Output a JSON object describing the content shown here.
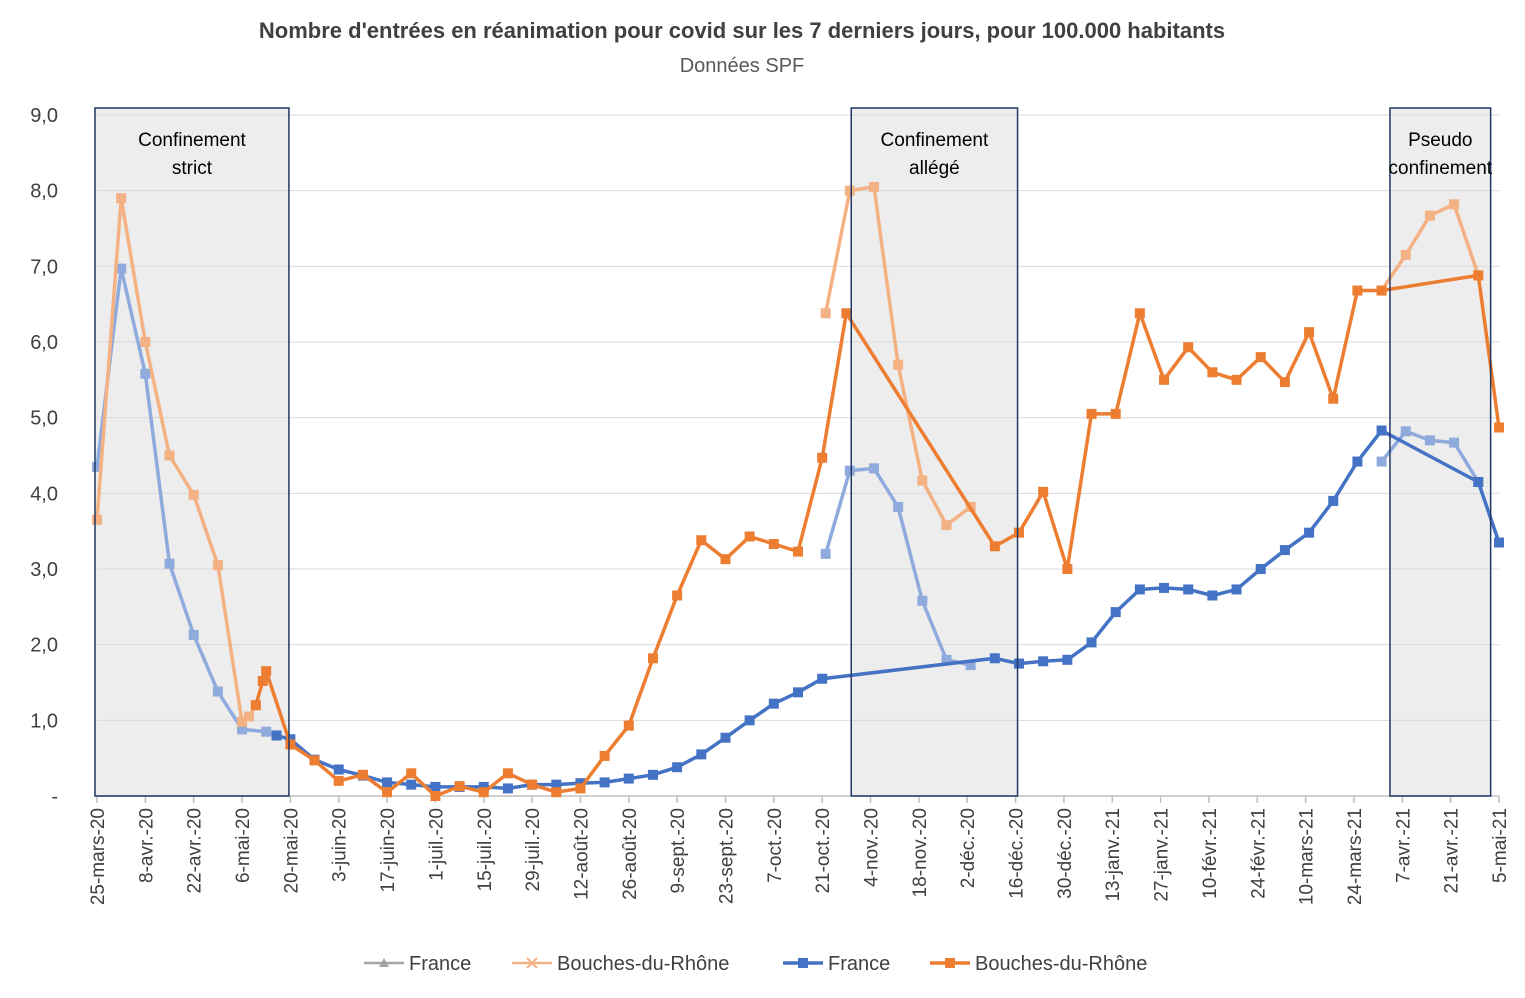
{
  "chart_data": {
    "type": "line",
    "title": "Nombre d'entrées en réanimation pour covid sur les 7 derniers jours, pour 100.000 habitants",
    "subtitle": "Données SPF",
    "xlabel": "",
    "ylabel": "",
    "ylim": [
      0,
      9
    ],
    "y_ticks": [
      "-",
      "1,0",
      "2,0",
      "3,0",
      "4,0",
      "5,0",
      "6,0",
      "7,0",
      "8,0",
      "9,0"
    ],
    "grid": true,
    "legend_position": "bottom",
    "x_tick_labels": [
      "25-mars-20",
      "8-avr.-20",
      "22-avr.-20",
      "6-mai-20",
      "20-mai-20",
      "3-juin-20",
      "17-juin-20",
      "1-juil.-20",
      "15-juil.-20",
      "29-juil.-20",
      "12-août-20",
      "26-août-20",
      "9-sept.-20",
      "23-sept.-20",
      "7-oct.-20",
      "21-oct.-20",
      "4-nov.-20",
      "18-nov.-20",
      "2-déc.-20",
      "16-déc.-20",
      "30-déc.-20",
      "13-janv.-21",
      "27-janv.-21",
      "10-févr.-21",
      "24-févr.-21",
      "10-mars-21",
      "24-mars-21",
      "7-avr.-21",
      "21-avr.-21",
      "5-mai-21"
    ],
    "x_range_days": [
      0,
      406
    ],
    "colors": {
      "france_light": "#8FAADC",
      "bdr_light": "#F4B183",
      "france": "#4472C4",
      "bdr": "#ED7D31",
      "shade": "#EDEDED",
      "box_border": "#203864",
      "grid": "#D9D9D9",
      "axis": "#BFBFBF",
      "legend_triangle": "#A5A5A5"
    },
    "legend": [
      {
        "name": "France",
        "marker": "triangle",
        "color": "#A5A5A5"
      },
      {
        "name": "Bouches-du-Rhône",
        "marker": "cross",
        "color": "#F4B183"
      },
      {
        "name": "France",
        "marker": "square",
        "color": "#4472C4"
      },
      {
        "name": "Bouches-du-Rhône",
        "marker": "square",
        "color": "#ED7D31"
      }
    ],
    "shaded_periods": [
      {
        "label_lines": [
          "Confinement",
          "strict"
        ],
        "x_start": 0,
        "x_end": 55
      },
      {
        "label_lines": [
          "Confinement",
          "allégé"
        ],
        "x_start": 219,
        "x_end": 266
      },
      {
        "label_lines": [
          "Pseudo",
          "confinement"
        ],
        "x_start": 375,
        "x_end": 403
      }
    ],
    "series": [
      {
        "name": "France",
        "variant": "light",
        "color": "#8FAADC",
        "x": [
          0,
          7,
          14,
          21,
          28,
          35,
          42,
          49,
          52
        ],
        "y": [
          4.35,
          6.97,
          5.58,
          3.07,
          2.13,
          1.38,
          0.88,
          0.85,
          0.8
        ]
      },
      {
        "name": "Bouches-du-Rhône",
        "variant": "light",
        "color": "#F4B183",
        "x": [
          0,
          7,
          14,
          21,
          28,
          35,
          42,
          44,
          46
        ],
        "y": [
          3.65,
          7.9,
          6.0,
          4.5,
          3.98,
          3.05,
          0.98,
          1.05,
          1.2
        ]
      },
      {
        "name": "France",
        "variant": "light",
        "color": "#8FAADC",
        "x": [
          211,
          218,
          225,
          232,
          239,
          246,
          253
        ],
        "y": [
          3.2,
          4.3,
          4.33,
          3.82,
          2.58,
          1.8,
          1.73
        ]
      },
      {
        "name": "Bouches-du-Rhône",
        "variant": "light",
        "color": "#F4B183",
        "x": [
          211,
          218,
          225,
          232,
          239,
          246,
          253
        ],
        "y": [
          6.38,
          8.0,
          8.05,
          5.7,
          4.17,
          3.58,
          3.82
        ]
      },
      {
        "name": "France",
        "variant": "light",
        "color": "#8FAADC",
        "x": [
          372,
          379,
          386,
          393,
          400
        ],
        "y": [
          4.42,
          4.82,
          4.7,
          4.67,
          4.15
        ]
      },
      {
        "name": "Bouches-du-Rhône",
        "variant": "light",
        "color": "#F4B183",
        "x": [
          372,
          379,
          386,
          393,
          400
        ],
        "y": [
          6.68,
          7.15,
          7.67,
          7.82,
          6.88
        ]
      },
      {
        "name": "France",
        "variant": "dark",
        "color": "#4472C4",
        "x": [
          52,
          56,
          63,
          70,
          77,
          84,
          91,
          98,
          105,
          112,
          119,
          126,
          133,
          140,
          147,
          154,
          161,
          168,
          175,
          182,
          189,
          196,
          203,
          210,
          260,
          267,
          274,
          281,
          288,
          295,
          302,
          309,
          316,
          323,
          330,
          337,
          344,
          351,
          358,
          365,
          372,
          400,
          406
        ],
        "y": [
          0.8,
          0.75,
          0.48,
          0.35,
          0.27,
          0.18,
          0.15,
          0.12,
          0.12,
          0.12,
          0.1,
          0.15,
          0.15,
          0.17,
          0.18,
          0.23,
          0.28,
          0.38,
          0.55,
          0.77,
          1.0,
          1.22,
          1.37,
          1.55,
          1.82,
          1.75,
          1.78,
          1.8,
          2.03,
          2.43,
          2.73,
          2.75,
          2.73,
          2.65,
          2.73,
          3.0,
          3.25,
          3.48,
          3.9,
          4.42,
          4.83,
          4.15,
          3.35
        ]
      },
      {
        "name": "Bouches-du-Rhône",
        "variant": "dark",
        "color": "#ED7D31",
        "x": [
          46,
          48,
          49,
          56,
          63,
          70,
          77,
          84,
          91,
          98,
          105,
          112,
          119,
          126,
          133,
          140,
          147,
          154,
          161,
          168,
          175,
          182,
          189,
          196,
          203,
          210,
          217,
          260,
          267,
          274,
          281,
          288,
          295,
          302,
          309,
          316,
          323,
          330,
          337,
          344,
          351,
          358,
          365,
          372,
          400,
          406
        ],
        "y": [
          1.2,
          1.52,
          1.65,
          0.68,
          0.47,
          0.2,
          0.28,
          0.05,
          0.3,
          0.0,
          0.13,
          0.05,
          0.3,
          0.15,
          0.05,
          0.1,
          0.53,
          0.93,
          1.82,
          2.65,
          3.38,
          3.13,
          3.43,
          3.33,
          3.23,
          4.47,
          6.38,
          3.3,
          3.48,
          4.02,
          3.0,
          5.05,
          5.05,
          6.38,
          5.5,
          5.93,
          5.6,
          5.5,
          5.8,
          5.47,
          6.13,
          5.25,
          6.68,
          6.68,
          6.88,
          4.87
        ]
      }
    ]
  }
}
